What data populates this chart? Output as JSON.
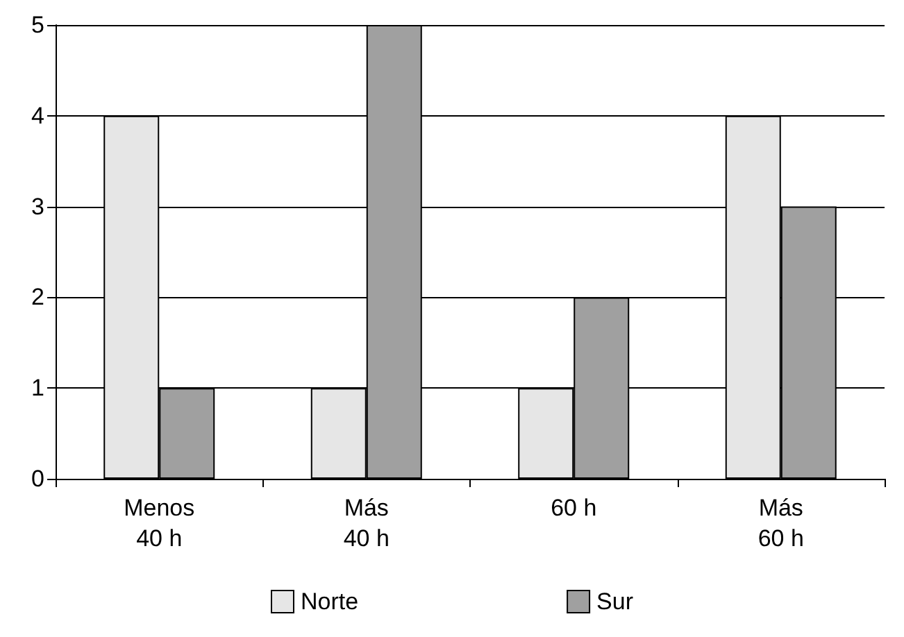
{
  "chart_data": {
    "type": "bar",
    "categories": [
      "Menos\n40 h",
      "Más\n40 h",
      "60 h",
      "Más\n60 h"
    ],
    "series": [
      {
        "name": "Norte",
        "color": "#e6e6e6",
        "values": [
          4,
          1,
          1,
          4
        ]
      },
      {
        "name": "Sur",
        "color": "#a0a0a0",
        "values": [
          1,
          5,
          2,
          3
        ]
      }
    ],
    "ylim": [
      0,
      5
    ],
    "yticks": [
      0,
      1,
      2,
      3,
      4,
      5
    ],
    "grid": "y",
    "legend": "bottom"
  }
}
